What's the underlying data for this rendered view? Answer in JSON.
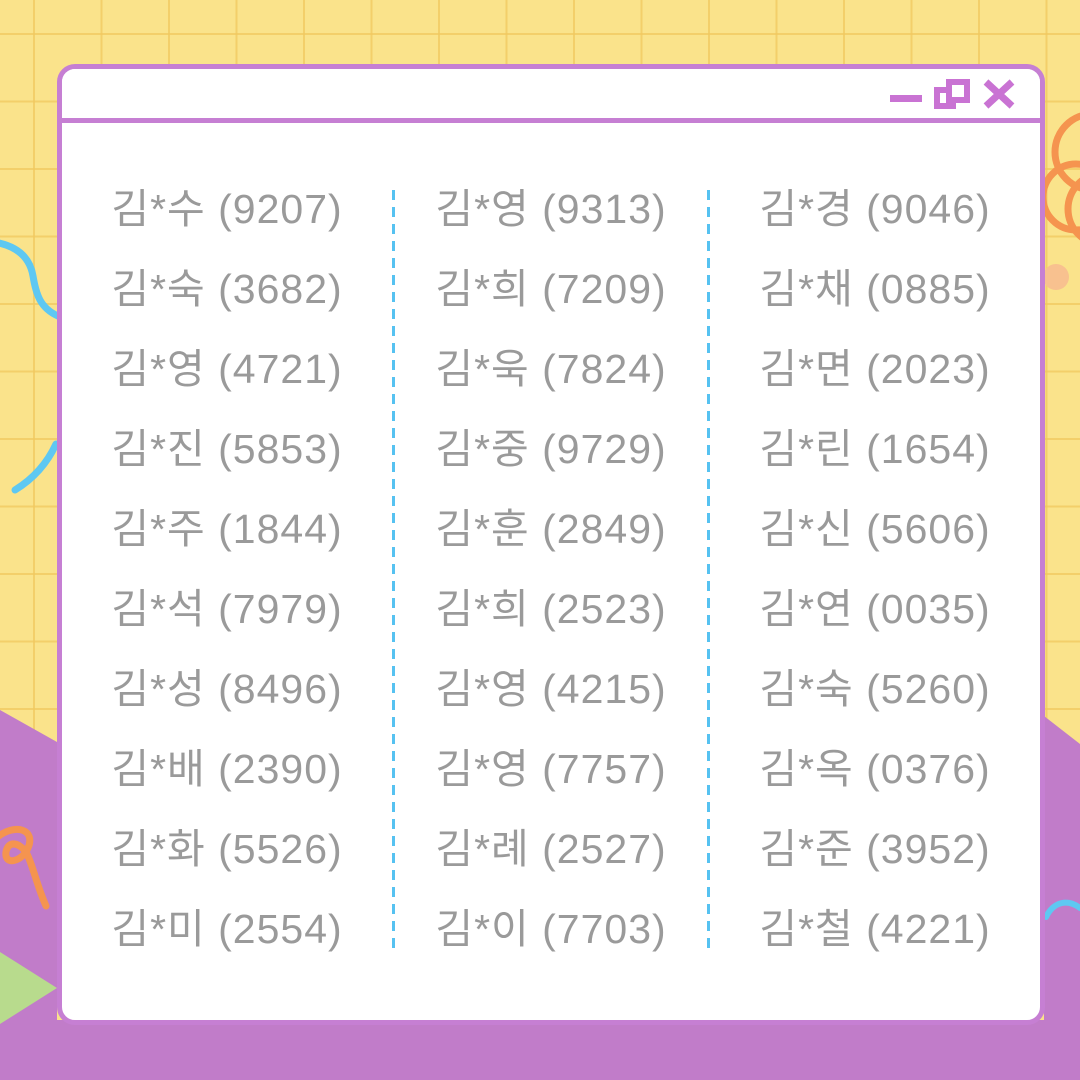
{
  "window": {
    "titlebar": {
      "controls": [
        {
          "name": "minimize",
          "icon": "minimize-icon"
        },
        {
          "name": "restore",
          "icon": "restore-icon"
        },
        {
          "name": "close",
          "icon": "close-icon"
        }
      ]
    }
  },
  "list": {
    "columns": [
      {
        "entries": [
          "김*수 (9207)",
          "김*숙 (3682)",
          "김*영 (4721)",
          "김*진 (5853)",
          "김*주 (1844)",
          "김*석 (7979)",
          "김*성 (8496)",
          "김*배 (2390)",
          "김*화 (5526)",
          "김*미 (2554)"
        ]
      },
      {
        "entries": [
          "김*영 (9313)",
          "김*희 (7209)",
          "김*욱 (7824)",
          "김*중 (9729)",
          "김*훈 (2849)",
          "김*희 (2523)",
          "김*영 (4215)",
          "김*영 (7757)",
          "김*례 (2527)",
          "김*이 (7703)"
        ]
      },
      {
        "entries": [
          "김*경 (9046)",
          "김*채 (0885)",
          "김*면 (2023)",
          "김*린 (1654)",
          "김*신 (5606)",
          "김*연 (0035)",
          "김*숙 (5260)",
          "김*옥 (0376)",
          "김*준 (3952)",
          "김*철 (4221)"
        ]
      }
    ]
  },
  "decorations": {
    "icons": [
      "squiggle-blue-icon",
      "arc-blue-icon",
      "loops-orange-icon",
      "dot-peach-icon",
      "script-orange-icon",
      "triangle-green-icon"
    ]
  },
  "colors": {
    "background_yellow": "#fae38b",
    "grid_line": "#f0c85f",
    "background_purple": "#c17cc9",
    "window_border": "#c67fd3",
    "control_icon": "#c973d3",
    "divider_blue": "#56c2f1",
    "text_gray": "#9a9a9a",
    "squiggle_blue": "#5ec8f2",
    "squiggle_orange": "#f5944f",
    "dot_peach": "#f8c18f",
    "triangle_green": "#b8db8d"
  }
}
